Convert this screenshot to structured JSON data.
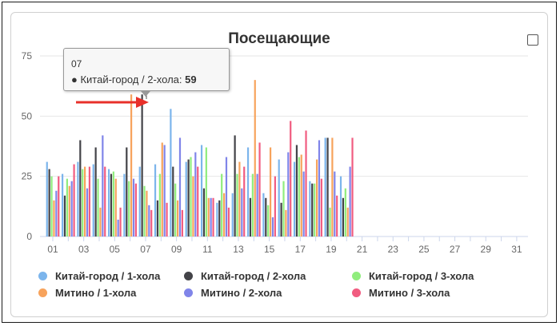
{
  "title": "Посещающие",
  "tooltip": {
    "date": "07",
    "series": "Китай-город / 2-хола",
    "value": "59"
  },
  "chart_data": {
    "type": "bar",
    "title": "Посещающие",
    "xlabel": "",
    "ylabel": "",
    "ylim": [
      0,
      75
    ],
    "yticks": [
      0,
      25,
      50,
      75
    ],
    "grid": true,
    "legend_position": "bottom",
    "categories": [
      "01",
      "02",
      "03",
      "04",
      "05",
      "06",
      "07",
      "08",
      "09",
      "10",
      "11",
      "12",
      "13",
      "14",
      "15",
      "16",
      "17",
      "18",
      "19",
      "20",
      "21",
      "22",
      "23",
      "24",
      "25",
      "26",
      "27",
      "28",
      "29",
      "30",
      "31"
    ],
    "xtick_labels": [
      "01",
      "03",
      "05",
      "07",
      "09",
      "11",
      "13",
      "15",
      "17",
      "19",
      "21",
      "23",
      "25",
      "27",
      "29",
      "31"
    ],
    "series": [
      {
        "name": "Китай-город / 1-хола",
        "color": "#7cb5ec",
        "values": [
          31,
          26,
          31,
          30,
          28,
          26,
          29,
          30,
          53,
          31,
          38,
          14,
          18,
          37,
          18,
          32,
          31,
          23,
          41,
          25,
          null,
          null,
          null,
          null,
          null,
          null,
          null,
          null,
          null,
          null,
          null
        ]
      },
      {
        "name": "Китай-город / 2-хола",
        "color": "#434348",
        "values": [
          28,
          17,
          40,
          37,
          26,
          37,
          59,
          15,
          29,
          32,
          20,
          15,
          42,
          16,
          16,
          14,
          38,
          22,
          41,
          16,
          null,
          null,
          null,
          null,
          null,
          null,
          null,
          null,
          null,
          null,
          null
        ]
      },
      {
        "name": "Китай-город / 3-хола",
        "color": "#90ed7d",
        "values": [
          25,
          24,
          28,
          24,
          27,
          23,
          21,
          26,
          22,
          33,
          37,
          26,
          26,
          26,
          13,
          23,
          33,
          22,
          12,
          20,
          null,
          null,
          null,
          null,
          null,
          null,
          null,
          null,
          null,
          null,
          null
        ]
      },
      {
        "name": "Митино / 1-хола",
        "color": "#f7a35c",
        "values": [
          15,
          21,
          29,
          12,
          24,
          59,
          19,
          39,
          15,
          25,
          16,
          18,
          31,
          65,
          37,
          11,
          34,
          32,
          41,
          12,
          null,
          null,
          null,
          null,
          null,
          null,
          null,
          null,
          null,
          null,
          null
        ]
      },
      {
        "name": "Митино / 2-хола",
        "color": "#8085e9",
        "values": [
          19,
          23,
          20,
          42,
          7,
          24,
          13,
          38,
          41,
          35,
          16,
          33,
          20,
          26,
          8,
          35,
          27,
          40,
          27,
          29,
          null,
          null,
          null,
          null,
          null,
          null,
          null,
          null,
          null,
          null,
          null
        ]
      },
      {
        "name": "Митино / 3-хола",
        "color": "#f15c80",
        "values": [
          25,
          30,
          29,
          29,
          12,
          22,
          11,
          14,
          11,
          29,
          16,
          12,
          29,
          39,
          25,
          48,
          44,
          24,
          17,
          41,
          null,
          null,
          null,
          null,
          null,
          null,
          null,
          null,
          null,
          null,
          null
        ]
      }
    ]
  }
}
